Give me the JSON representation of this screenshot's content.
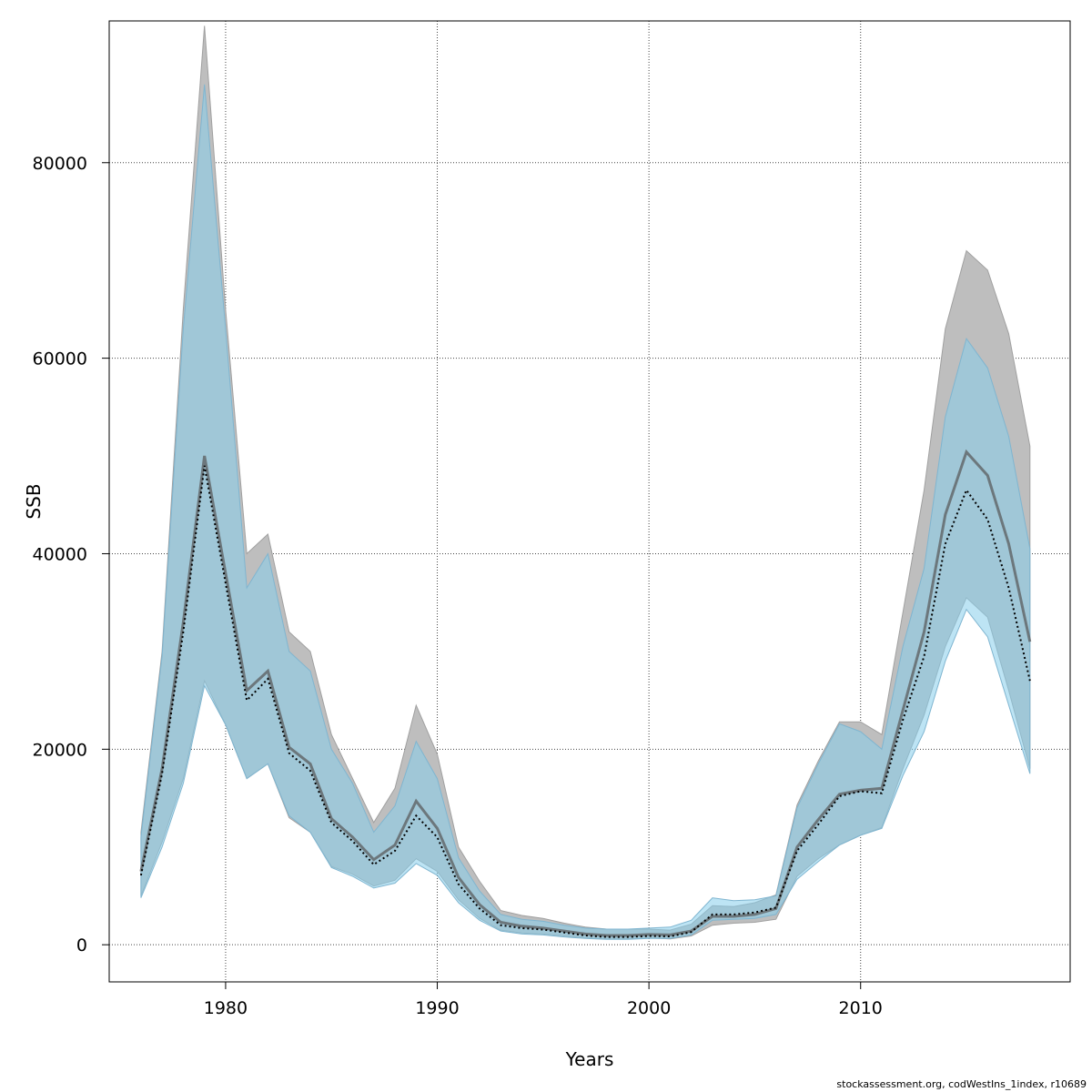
{
  "chart_data": {
    "type": "area",
    "xlabel": "Years",
    "ylabel": "SSB",
    "xlim": [
      1974.5,
      2019.9
    ],
    "ylim": [
      -3800,
      94500
    ],
    "xticks": [
      1980,
      1990,
      2000,
      2010
    ],
    "yticks": [
      0,
      20000,
      40000,
      60000,
      80000
    ],
    "xtick_labels": [
      "1980",
      "1990",
      "2000",
      "2010"
    ],
    "ytick_labels": [
      "0",
      "20000",
      "40000",
      "60000",
      "80000"
    ],
    "grid": true,
    "x": [
      1976,
      1977,
      1978,
      1979,
      1980,
      1981,
      1982,
      1983,
      1984,
      1985,
      1986,
      1987,
      1988,
      1989,
      1990,
      1991,
      1992,
      1993,
      1994,
      1995,
      1996,
      1997,
      1998,
      1999,
      2000,
      2001,
      2002,
      2003,
      2004,
      2005,
      2006,
      2007,
      2008,
      2009,
      2010,
      2011,
      2012,
      2013,
      2014,
      2015,
      2016,
      2017,
      2018
    ],
    "series": [
      {
        "fill_color": "#bebebe",
        "line_color": "#555555",
        "line_style": "solid",
        "values": [
          7500,
          18000,
          33000,
          50000,
          38000,
          26000,
          28000,
          20200,
          18500,
          12900,
          11000,
          8700,
          10200,
          14700,
          11900,
          6900,
          4100,
          2300,
          1900,
          1700,
          1400,
          1100,
          950,
          950,
          1050,
          1000,
          1400,
          2900,
          2900,
          3100,
          3700,
          10000,
          12800,
          15400,
          15800,
          16000,
          24000,
          32000,
          44000,
          50400,
          48000,
          41000,
          31000
        ],
        "lower": [
          5000,
          10500,
          17000,
          27000,
          22500,
          17000,
          18500,
          13000,
          11500,
          8000,
          7200,
          6000,
          6600,
          8800,
          7500,
          4600,
          2700,
          1500,
          1200,
          1100,
          900,
          700,
          600,
          600,
          700,
          600,
          900,
          2000,
          2200,
          2300,
          2600,
          7000,
          8800,
          10200,
          11200,
          12000,
          18000,
          23500,
          30500,
          35500,
          33500,
          26000,
          18000
        ],
        "upper": [
          11500,
          30000,
          65000,
          94000,
          65000,
          40000,
          42000,
          32000,
          30000,
          21500,
          17000,
          12500,
          16000,
          24500,
          19500,
          10000,
          6500,
          3500,
          3000,
          2700,
          2200,
          1800,
          1600,
          1600,
          1600,
          1500,
          2100,
          4000,
          3900,
          4300,
          5100,
          14300,
          18800,
          22800,
          22800,
          21500,
          34000,
          46500,
          63000,
          71000,
          69000,
          62500,
          51000
        ]
      },
      {
        "fill_color": "#87ceeb",
        "line_color": "#000000",
        "line_style": "dotted",
        "values": [
          7100,
          17500,
          32000,
          49000,
          37000,
          25000,
          27200,
          19600,
          17800,
          12500,
          10600,
          8200,
          9600,
          13200,
          11000,
          6200,
          3700,
          2000,
          1700,
          1550,
          1250,
          950,
          800,
          800,
          900,
          850,
          1300,
          3100,
          3100,
          3300,
          3800,
          9600,
          12300,
          15200,
          15700,
          15500,
          23000,
          29500,
          41000,
          46500,
          43500,
          36500,
          27000
        ],
        "lower": [
          4800,
          10000,
          16500,
          26500,
          22500,
          17000,
          18500,
          13200,
          11500,
          7900,
          7000,
          5800,
          6300,
          8300,
          7100,
          4300,
          2500,
          1400,
          1100,
          1000,
          800,
          650,
          550,
          550,
          650,
          650,
          1000,
          2500,
          2600,
          2700,
          3100,
          6700,
          8500,
          10200,
          11200,
          11900,
          17300,
          21800,
          29000,
          34300,
          31500,
          24500,
          17500
        ],
        "upper": [
          11000,
          29500,
          63000,
          88000,
          63000,
          36500,
          40000,
          30000,
          28000,
          20000,
          16500,
          11500,
          14200,
          20800,
          17000,
          8900,
          5500,
          3100,
          2600,
          2400,
          2000,
          1700,
          1600,
          1600,
          1700,
          1800,
          2500,
          4800,
          4500,
          4600,
          5000,
          14000,
          18500,
          22600,
          21800,
          20000,
          30500,
          38500,
          54000,
          62000,
          59000,
          52000,
          40500
        ]
      }
    ]
  },
  "footer": {
    "text": "stockassessment.org, codWestIns_1index, r10689"
  }
}
